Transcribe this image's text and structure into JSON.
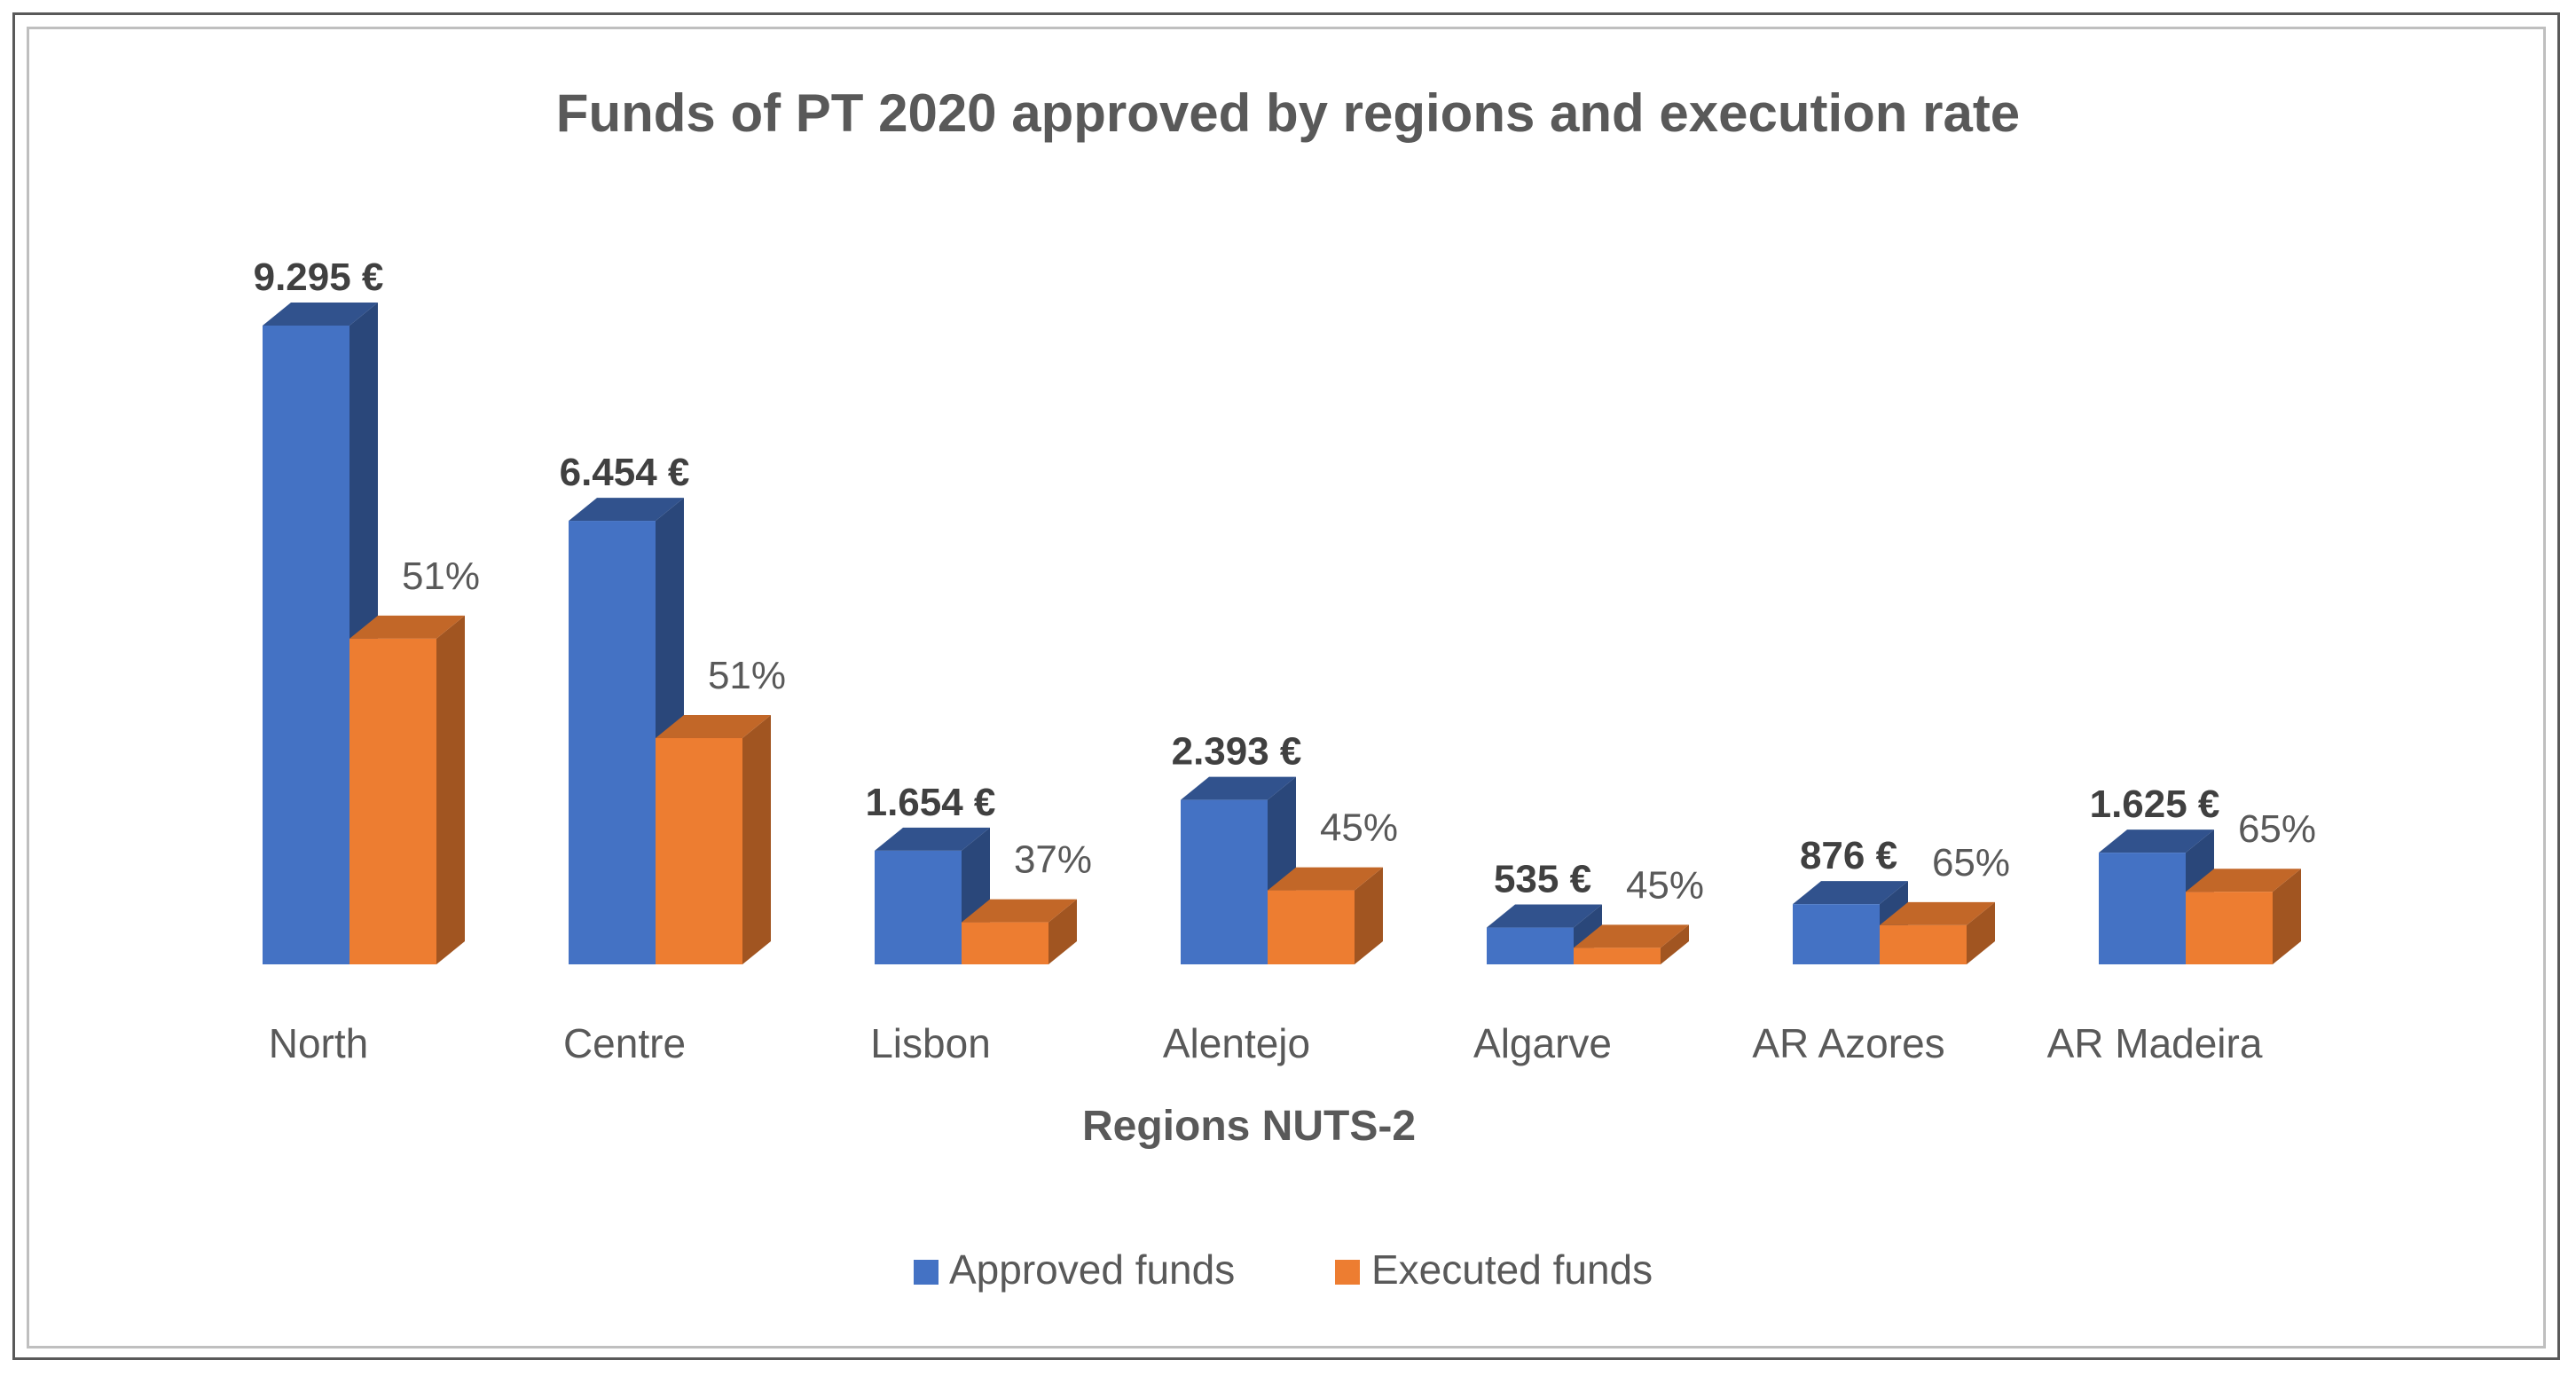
{
  "chart_data": {
    "type": "bar",
    "title": "Funds of PT 2020 approved by regions and execution rate",
    "xlabel": "Regions NUTS-2",
    "ylabel": "",
    "categories": [
      "North",
      "Centre",
      "Lisbon",
      "Alentejo",
      "Algarve",
      "AR Azores",
      "AR Madeira"
    ],
    "series": [
      {
        "name": "Approved funds",
        "color": "#4472c4",
        "values": [
          9295,
          6454,
          1654,
          2393,
          535,
          876,
          1625
        ],
        "labels": [
          "9.295 €",
          "6.454 €",
          "1.654 €",
          "2.393 €",
          "535 €",
          "876 €",
          "1.625 €"
        ]
      },
      {
        "name": "Executed funds",
        "color": "#ed7d31",
        "values": [
          4740,
          3292,
          612,
          1077,
          241,
          569,
          1056
        ],
        "labels": [
          "51%",
          "51%",
          "37%",
          "45%",
          "45%",
          "65%",
          "65%"
        ]
      }
    ],
    "ylim": [
      0,
      9295
    ],
    "grid": false,
    "legend": "bottom"
  }
}
